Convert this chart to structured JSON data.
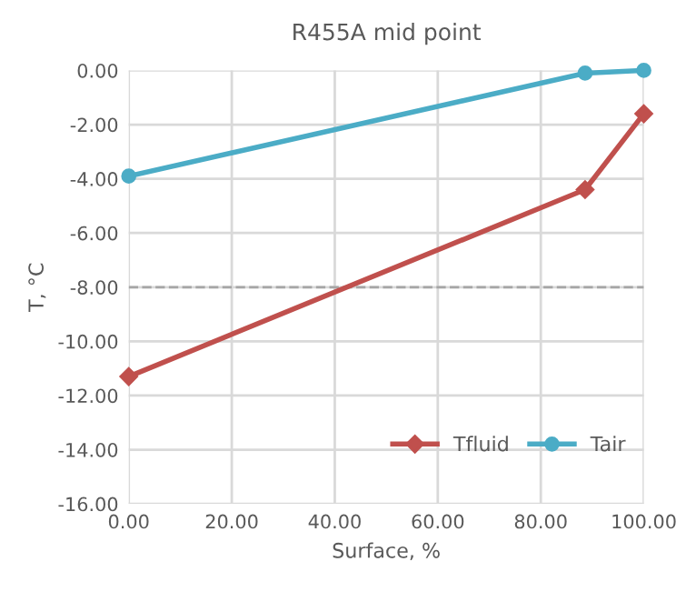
{
  "chart_data": {
    "type": "line",
    "title": "R455A mid point",
    "xlabel": "Surface, %",
    "ylabel": "T, °C",
    "series": [
      {
        "name": "Tfluid",
        "color": "#c0504d",
        "marker": "diamond",
        "x": [
          0,
          88.6,
          100
        ],
        "values": [
          -11.3,
          -4.4,
          -1.6
        ]
      },
      {
        "name": "Tair",
        "color": "#4bacc6",
        "marker": "circle",
        "x": [
          0,
          88.6,
          100
        ],
        "values": [
          -3.9,
          -0.1,
          0.0
        ]
      }
    ],
    "xlim": [
      0,
      100
    ],
    "xticks": [
      {
        "value": 0,
        "label": "0.00"
      },
      {
        "value": 20,
        "label": "20.00"
      },
      {
        "value": 40,
        "label": "40.00"
      },
      {
        "value": 60,
        "label": "60.00"
      },
      {
        "value": 80,
        "label": "80.00"
      },
      {
        "value": 100,
        "label": "100.00"
      }
    ],
    "ylim": [
      -16,
      0
    ],
    "yticks": [
      {
        "value": -16,
        "label": "-16.00"
      },
      {
        "value": -14,
        "label": "-14.00"
      },
      {
        "value": -12,
        "label": "-12.00"
      },
      {
        "value": -10,
        "label": "-10.00"
      },
      {
        "value": -8,
        "label": "-8.00"
      },
      {
        "value": -6,
        "label": "-6.00"
      },
      {
        "value": -4,
        "label": "-4.00"
      },
      {
        "value": -2,
        "label": "-2.00"
      },
      {
        "value": 0,
        "label": "0.00"
      }
    ],
    "ref_lines": [
      {
        "axis": "y",
        "value": -8,
        "color": "#a6a6a6",
        "line_style": "dashed"
      }
    ],
    "grid": true,
    "legend": "bottom right"
  }
}
